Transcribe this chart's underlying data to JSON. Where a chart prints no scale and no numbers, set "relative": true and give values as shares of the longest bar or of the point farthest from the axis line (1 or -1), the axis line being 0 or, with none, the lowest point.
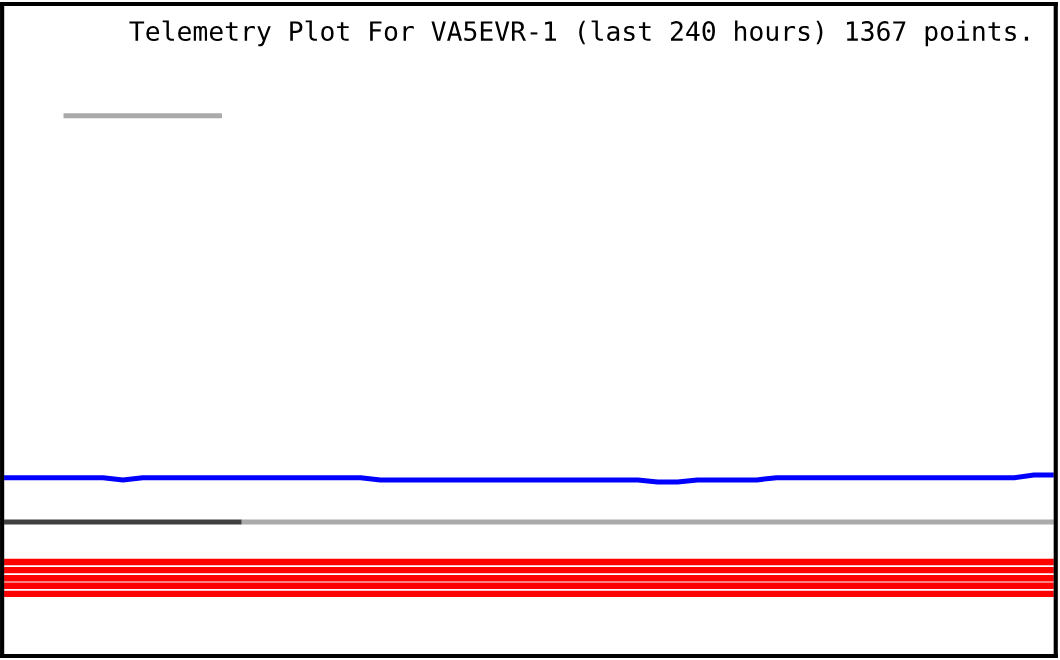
{
  "chart_data": {
    "type": "line",
    "title": "Telemetry Plot For VA5EVR-1 (last 240 hours) 1367 points.",
    "relative": true,
    "grid": false,
    "marker": "none",
    "line_style": "solid",
    "categories": [
      null,
      null,
      null,
      null,
      null,
      null,
      null,
      null,
      null,
      null,
      null,
      null,
      null,
      null,
      null,
      null,
      null,
      null,
      null,
      null,
      null,
      null,
      null,
      null,
      null,
      null,
      null,
      null,
      null,
      null,
      null,
      null,
      null,
      null,
      null,
      null,
      null,
      null,
      null,
      null,
      null,
      null,
      null,
      null,
      null,
      null,
      null,
      null,
      null,
      null,
      null,
      null,
      null,
      null
    ],
    "series": [
      {
        "color": "#aaaaaa",
        "values": [
          null,
          null,
          null,
          1.0,
          1.0,
          1.0,
          1.0,
          1.0,
          1.0,
          1.0,
          1.0,
          1.0,
          null,
          null,
          null,
          null,
          null,
          null,
          null,
          null,
          null,
          null,
          null,
          null,
          null,
          null,
          null,
          null,
          null,
          null,
          null,
          null,
          null,
          null,
          null,
          null,
          null,
          null,
          null,
          null,
          null,
          null,
          null,
          null,
          null,
          null,
          null,
          null,
          null,
          null,
          null,
          null,
          null,
          null
        ]
      },
      {
        "color": "#0000ff",
        "values": [
          0.33,
          0.33,
          0.33,
          0.33,
          0.33,
          0.33,
          0.326,
          0.33,
          0.33,
          0.33,
          0.33,
          0.33,
          0.33,
          0.33,
          0.33,
          0.33,
          0.33,
          0.33,
          0.33,
          0.326,
          0.326,
          0.326,
          0.326,
          0.326,
          0.326,
          0.326,
          0.326,
          0.326,
          0.326,
          0.326,
          0.326,
          0.326,
          0.326,
          0.322,
          0.322,
          0.326,
          0.326,
          0.326,
          0.326,
          0.33,
          0.33,
          0.33,
          0.33,
          0.33,
          0.33,
          0.33,
          0.33,
          0.33,
          0.33,
          0.33,
          0.33,
          0.33,
          0.335,
          0.335
        ]
      },
      {
        "color": "#404040",
        "values": [
          0.248,
          0.248,
          0.248,
          0.248,
          0.248,
          0.248,
          0.248,
          0.248,
          0.248,
          0.248,
          0.248,
          0.248,
          0.248,
          null,
          null,
          null,
          null,
          null,
          null,
          null,
          null,
          null,
          null,
          null,
          null,
          null,
          null,
          null,
          null,
          null,
          null,
          null,
          null,
          null,
          null,
          null,
          null,
          null,
          null,
          null,
          null,
          null,
          null,
          null,
          null,
          null,
          null,
          null,
          null,
          null,
          null,
          null,
          null,
          null
        ]
      },
      {
        "color": "#aaaaaa",
        "values": [
          null,
          null,
          null,
          null,
          null,
          null,
          null,
          null,
          null,
          null,
          null,
          null,
          0.248,
          0.248,
          0.248,
          0.248,
          0.248,
          0.248,
          0.248,
          0.248,
          0.248,
          0.248,
          0.248,
          0.248,
          0.248,
          0.248,
          0.248,
          0.248,
          0.248,
          0.248,
          0.248,
          0.248,
          0.248,
          0.248,
          0.248,
          0.248,
          0.248,
          0.248,
          0.248,
          0.248,
          0.248,
          0.248,
          0.248,
          0.248,
          0.248,
          0.248,
          0.248,
          0.248,
          0.248,
          0.248,
          0.248,
          0.248,
          0.248,
          0.248
        ]
      },
      {
        "color": "#ff0000",
        "values": [
          0.174,
          0.174,
          0.174,
          0.174,
          0.174,
          0.174,
          0.174,
          0.174,
          0.174,
          0.174,
          0.174,
          0.174,
          0.174,
          0.174,
          0.174,
          0.174,
          0.174,
          0.174,
          0.174,
          0.174,
          0.174,
          0.174,
          0.174,
          0.174,
          0.174,
          0.174,
          0.174,
          0.174,
          0.174,
          0.174,
          0.174,
          0.174,
          0.174,
          0.174,
          0.174,
          0.174,
          0.174,
          0.174,
          0.174,
          0.174,
          0.174,
          0.174,
          0.174,
          0.174,
          0.174,
          0.174,
          0.174,
          0.174,
          0.174,
          0.174,
          0.174,
          0.174,
          0.174,
          0.174
        ]
      },
      {
        "color": "#ff0000",
        "values": [
          0.159,
          0.159,
          0.159,
          0.159,
          0.159,
          0.159,
          0.159,
          0.159,
          0.159,
          0.159,
          0.159,
          0.159,
          0.159,
          0.159,
          0.159,
          0.159,
          0.159,
          0.159,
          0.159,
          0.159,
          0.159,
          0.159,
          0.159,
          0.159,
          0.159,
          0.159,
          0.159,
          0.159,
          0.159,
          0.159,
          0.159,
          0.159,
          0.159,
          0.159,
          0.159,
          0.159,
          0.159,
          0.159,
          0.159,
          0.159,
          0.159,
          0.159,
          0.159,
          0.159,
          0.159,
          0.159,
          0.159,
          0.159,
          0.159,
          0.159,
          0.159,
          0.159,
          0.159,
          0.159
        ]
      },
      {
        "color": "#ff0000",
        "values": [
          0.144,
          0.144,
          0.144,
          0.144,
          0.144,
          0.144,
          0.144,
          0.144,
          0.144,
          0.144,
          0.144,
          0.144,
          0.144,
          0.144,
          0.144,
          0.144,
          0.144,
          0.144,
          0.144,
          0.144,
          0.144,
          0.144,
          0.144,
          0.144,
          0.144,
          0.144,
          0.144,
          0.144,
          0.144,
          0.144,
          0.144,
          0.144,
          0.144,
          0.144,
          0.144,
          0.144,
          0.144,
          0.144,
          0.144,
          0.144,
          0.144,
          0.144,
          0.144,
          0.144,
          0.144,
          0.144,
          0.144,
          0.144,
          0.144,
          0.144,
          0.144,
          0.144,
          0.144,
          0.144
        ]
      },
      {
        "color": "#ff0000",
        "values": [
          0.13,
          0.13,
          0.13,
          0.13,
          0.13,
          0.13,
          0.13,
          0.13,
          0.13,
          0.13,
          0.13,
          0.13,
          0.13,
          0.13,
          0.13,
          0.13,
          0.13,
          0.13,
          0.13,
          0.13,
          0.13,
          0.13,
          0.13,
          0.13,
          0.13,
          0.13,
          0.13,
          0.13,
          0.13,
          0.13,
          0.13,
          0.13,
          0.13,
          0.13,
          0.13,
          0.13,
          0.13,
          0.13,
          0.13,
          0.13,
          0.13,
          0.13,
          0.13,
          0.13,
          0.13,
          0.13,
          0.13,
          0.13,
          0.13,
          0.13,
          0.13,
          0.13,
          0.13,
          0.13
        ]
      },
      {
        "color": "#ff0000",
        "values": [
          0.115,
          0.115,
          0.115,
          0.115,
          0.115,
          0.115,
          0.115,
          0.115,
          0.115,
          0.115,
          0.115,
          0.115,
          0.115,
          0.115,
          0.115,
          0.115,
          0.115,
          0.115,
          0.115,
          0.115,
          0.115,
          0.115,
          0.115,
          0.115,
          0.115,
          0.115,
          0.115,
          0.115,
          0.115,
          0.115,
          0.115,
          0.115,
          0.115,
          0.115,
          0.115,
          0.115,
          0.115,
          0.115,
          0.115,
          0.115,
          0.115,
          0.115,
          0.115,
          0.115,
          0.115,
          0.115,
          0.115,
          0.115,
          0.115,
          0.115,
          0.115,
          0.115,
          0.115,
          0.115
        ]
      }
    ]
  }
}
